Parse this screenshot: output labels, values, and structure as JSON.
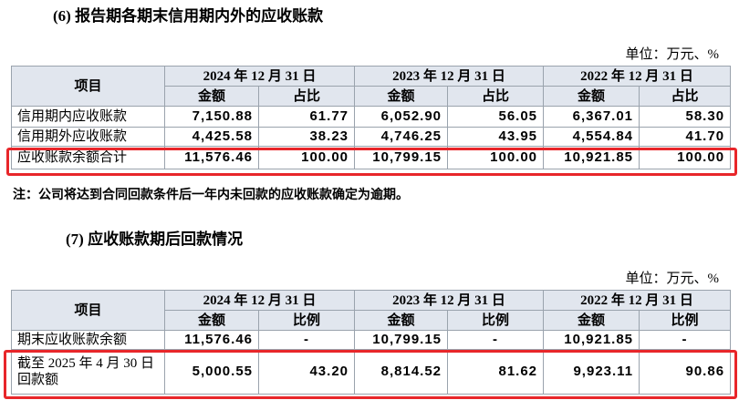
{
  "section6": {
    "title": "(6) 报告期各期末信用期内外的应收账款",
    "unit": "单位：万元、%",
    "table": {
      "item_header": "项目",
      "years": [
        "2024 年 12 月 31 日",
        "2023 年 12 月 31 日",
        "2022 年 12 月 31 日"
      ],
      "subheaders": [
        "金额",
        "占比",
        "金额",
        "占比",
        "金额",
        "占比"
      ],
      "rows": [
        [
          "信用期内应收账款",
          "7,150.88",
          "61.77",
          "6,052.90",
          "56.05",
          "6,367.01",
          "58.30"
        ],
        [
          "信用期外应收账款",
          "4,425.58",
          "38.23",
          "4,746.25",
          "43.95",
          "4,554.84",
          "41.70"
        ],
        [
          "应收账款余额合计",
          "11,576.46",
          "100.00",
          "10,799.15",
          "100.00",
          "10,921.85",
          "100.00"
        ]
      ]
    }
  },
  "note": "注：公司将达到合同回款条件后一年内未回款的应收账款确定为逾期。",
  "section7": {
    "title": "(7) 应收账款期后回款情况",
    "unit": "单位：万元、%",
    "table": {
      "item_header": "项目",
      "years": [
        "2024 年 12 月 31 日",
        "2023 年 12 月 31 日",
        "2022 年 12 月 31 日"
      ],
      "subheaders": [
        "金额",
        "比例",
        "金额",
        "比例",
        "金额",
        "比例"
      ],
      "rows": [
        [
          "期末应收账款余额",
          "11,576.46",
          "-",
          "10,799.15",
          "-",
          "10,921.85",
          "-"
        ],
        [
          "截至 2025 年 4 月 30 日回款额",
          "5,000.55",
          "43.20",
          "8,814.52",
          "81.62",
          "9,923.11",
          "90.86"
        ]
      ]
    }
  }
}
